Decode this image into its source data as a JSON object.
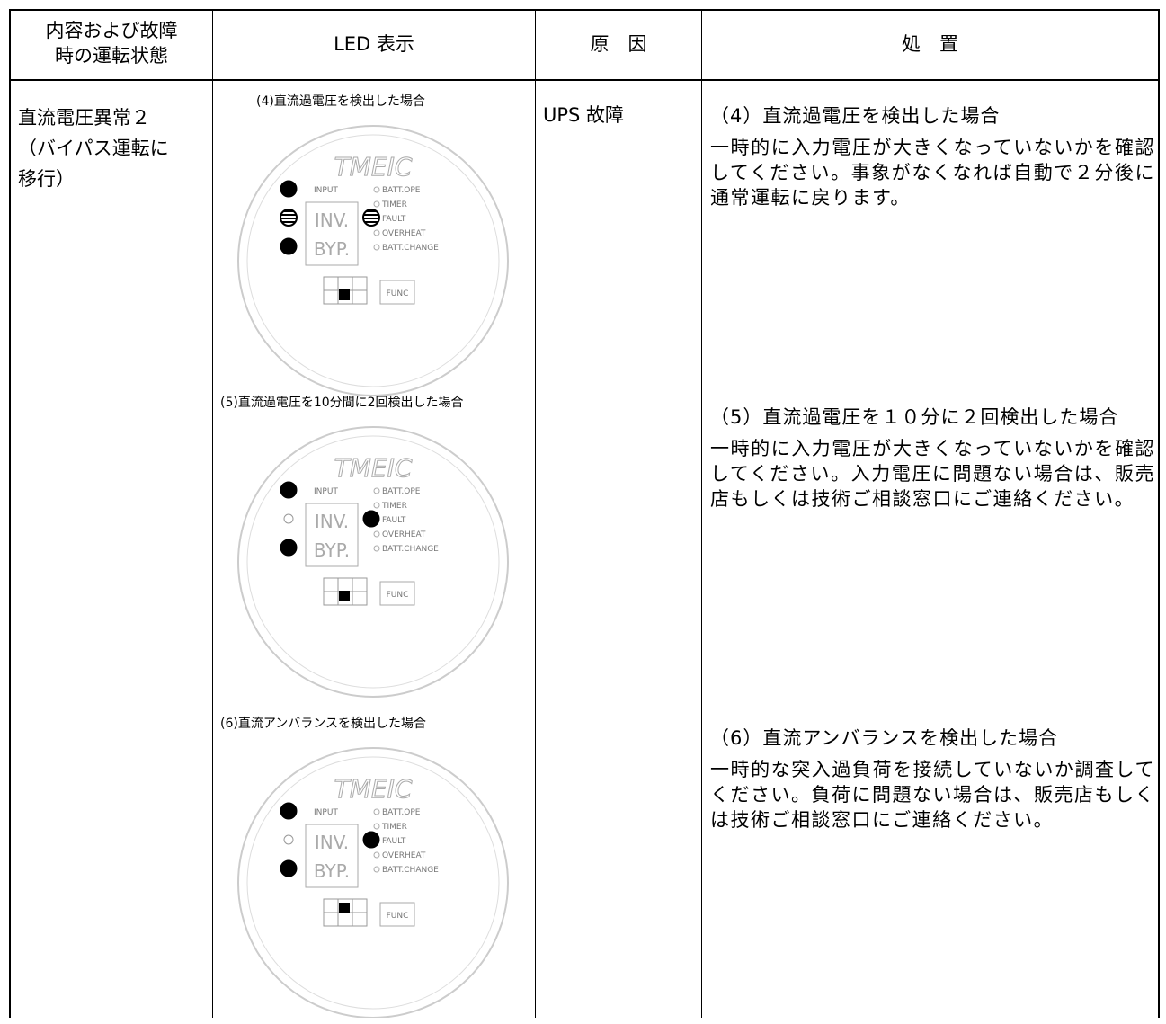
{
  "table": {
    "header": [
      [
        "内容および故障",
        "時の運転状態"
      ],
      [
        "LED 表示"
      ],
      [
        "原　因"
      ],
      [
        "処　置"
      ]
    ],
    "row": {
      "state": [
        "直流電圧異常２",
        "（バイパス運転に",
        "移行）"
      ],
      "cause": "UPS 故障",
      "cases": [
        {
          "caption": "(4)直流過電圧を検出した場合",
          "heading": "（4）直流過電圧を検出した場合",
          "text": "一時的に入力電圧が大きくなっていないかを確認してください。事象がなくなれば自動で２分後に通常運転に戻ります。"
        },
        {
          "caption": "(5)直流過電圧を10分間に2回検出した場合",
          "heading": "（5）直流過電圧を１０分に２回検出した場合",
          "text": "一時的に入力電圧が大きくなっていないかを確認してください。入力電圧に問題ない場合は、販売店もしくは技術ご相談窓口にご連絡ください。"
        },
        {
          "caption": "(6)直流アンバランスを検出した場合",
          "heading": "（6）直流アンバランスを検出した場合",
          "text": "一時的な突入過負荷を接続していないか調査してください。負荷に問題ない場合は、販売店もしくは技術ご相談窓口にご連絡ください。"
        }
      ]
    }
  },
  "led_panel": {
    "brand": "TMEIC",
    "input": "INPUT",
    "inv": "INV.",
    "byp": "BYP.",
    "batt_ope": "BATT.OPE",
    "timer": "TIMER",
    "fault": "FAULT",
    "overheat": "OVERHEAT",
    "batt_change": "BATT.CHANGE",
    "func": "FUNC"
  }
}
